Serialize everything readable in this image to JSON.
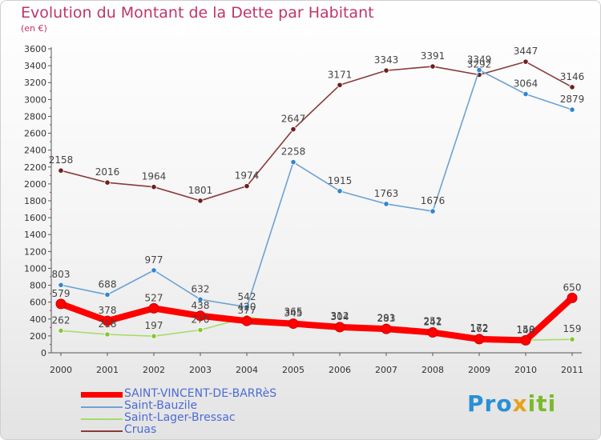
{
  "chart_data": {
    "type": "line",
    "title": "Evolution du Montant de la Dette par Habitant",
    "subtitle": "(en €)",
    "categories": [
      "2000",
      "2001",
      "2002",
      "2003",
      "2004",
      "2005",
      "2006",
      "2007",
      "2008",
      "2009",
      "2010",
      "2011"
    ],
    "ylim": [
      0,
      3600
    ],
    "y_ticks": [
      0,
      200,
      400,
      600,
      800,
      1000,
      1200,
      1400,
      1600,
      1800,
      2000,
      2200,
      2400,
      2600,
      2800,
      3000,
      3200,
      3400,
      3600
    ],
    "grid": false,
    "legend_position": "bottom-left",
    "series": [
      {
        "name": "SAINT-VINCENT-DE-BARRèS",
        "color": "#ff0000",
        "point_color": "#ff0000",
        "values": [
          579,
          378,
          527,
          438,
          377,
          345,
          304,
          283,
          241,
          162,
          148,
          650
        ]
      },
      {
        "name": "Saint-Bauzile",
        "color": "#6da2d3",
        "point_color": "#2f86d0",
        "values": [
          803,
          688,
          977,
          632,
          542,
          2258,
          1915,
          1763,
          1676,
          3349,
          3064,
          2879
        ]
      },
      {
        "name": "Saint-Lager-Bressac",
        "color": "#a6dc6a",
        "point_color": "#86c735",
        "values": [
          262,
          218,
          197,
          270,
          420,
          365,
          312,
          291,
          252,
          172,
          150,
          159
        ]
      },
      {
        "name": "Cruas",
        "color": "#8b3a3a",
        "point_color": "#6d1f1f",
        "values": [
          2158,
          2016,
          1964,
          1801,
          1974,
          2647,
          3171,
          3343,
          3391,
          3292,
          3447,
          3146
        ]
      }
    ]
  },
  "brand": {
    "part1": "Pro",
    "part2": "x",
    "part3": "iti"
  }
}
